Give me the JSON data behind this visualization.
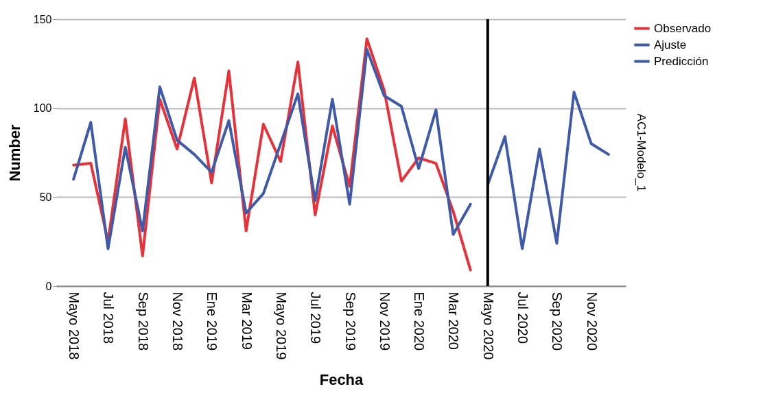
{
  "chart_data": {
    "type": "line",
    "xlabel": "Fecha",
    "ylabel": "Number",
    "categories": [
      "Mayo 2018",
      null,
      "Jul 2018",
      null,
      "Sep 2018",
      null,
      "Nov 2018",
      null,
      "Ene 2019",
      null,
      "Mar 2019",
      null,
      "Mayo 2019",
      null,
      "Jul 2019",
      null,
      "Sep 2019",
      null,
      "Nov 2019",
      null,
      "Ene 2020",
      null,
      "Mar 2020",
      null,
      "Mayo 2020",
      null,
      "Jul 2020",
      null,
      "Sep 2020",
      null,
      "Nov 2020",
      null
    ],
    "series": [
      {
        "name": "Observado",
        "color": "#e8323a",
        "values": [
          68,
          69,
          25,
          94,
          17,
          105,
          77,
          117,
          58,
          121,
          31,
          91,
          70,
          126,
          40,
          90,
          56,
          139,
          110,
          59,
          72,
          69,
          42,
          9,
          null,
          null,
          null,
          null,
          null,
          null,
          null,
          null
        ]
      },
      {
        "name": "Ajuste",
        "color": "#3f5aa8",
        "values": [
          60,
          92,
          21,
          78,
          31,
          112,
          82,
          74,
          64,
          93,
          41,
          52,
          80,
          108,
          48,
          105,
          46,
          133,
          107,
          101,
          66,
          99,
          29,
          46,
          null,
          null,
          null,
          null,
          null,
          null,
          null,
          null
        ]
      },
      {
        "name": "Predicción",
        "color": "#3f5aa8",
        "values": [
          null,
          null,
          null,
          null,
          null,
          null,
          null,
          null,
          null,
          null,
          null,
          null,
          null,
          null,
          null,
          null,
          null,
          null,
          null,
          null,
          null,
          null,
          null,
          null,
          57,
          84,
          21,
          77,
          24,
          109,
          80,
          74
        ]
      }
    ],
    "ylim": [
      0,
      150
    ],
    "yticks": [
      0,
      50,
      100,
      150
    ],
    "grid": "y",
    "legend": "top right",
    "ref_lines": [
      {
        "axis": "x",
        "value": "Mayo 2020",
        "color": "#000000"
      }
    ],
    "annotations": [
      "AC1-Modelo_1"
    ]
  }
}
